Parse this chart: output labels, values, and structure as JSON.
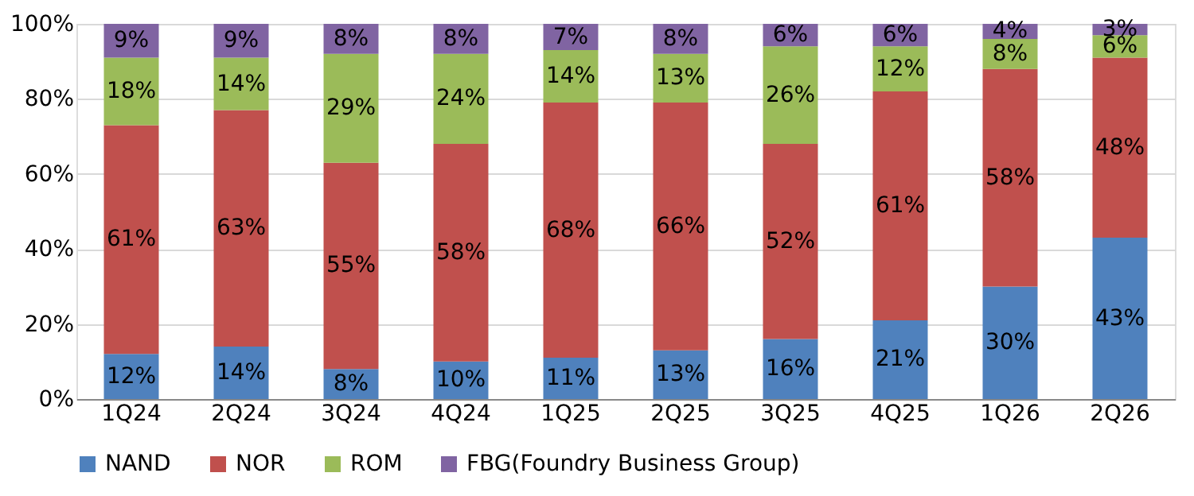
{
  "chart_data": {
    "type": "bar",
    "stacked": true,
    "categories": [
      "1Q24",
      "2Q24",
      "3Q24",
      "4Q24",
      "1Q25",
      "2Q25",
      "3Q25",
      "4Q25",
      "1Q26",
      "2Q26"
    ],
    "series": [
      {
        "name": "NAND",
        "color": "#4f81bd",
        "values": [
          12,
          14,
          8,
          10,
          11,
          13,
          16,
          21,
          30,
          43
        ],
        "value_labels": [
          "12%",
          "14%",
          "8%",
          "10%",
          "11%",
          "13%",
          "16%",
          "21%",
          "30%",
          "43%"
        ]
      },
      {
        "name": "NOR",
        "color": "#c0504d",
        "values": [
          61,
          63,
          55,
          58,
          68,
          66,
          52,
          61,
          58,
          48
        ],
        "value_labels": [
          "61%",
          "63%",
          "55%",
          "58%",
          "68%",
          "66%",
          "52%",
          "61%",
          "58%",
          "48%"
        ]
      },
      {
        "name": "ROM",
        "color": "#9bbb59",
        "values": [
          18,
          14,
          29,
          24,
          14,
          13,
          26,
          12,
          8,
          6
        ],
        "value_labels": [
          "18%",
          "14%",
          "29%",
          "24%",
          "14%",
          "13%",
          "26%",
          "12%",
          "8%",
          "6%"
        ]
      },
      {
        "name": "FBG(Foundry Business Group)",
        "color": "#8064a2",
        "values": [
          9,
          9,
          8,
          8,
          7,
          8,
          6,
          6,
          4,
          3
        ],
        "value_labels": [
          "9%",
          "9%",
          "8%",
          "8%",
          "7%",
          "8%",
          "6%",
          "6%",
          "4%",
          "3%"
        ]
      }
    ],
    "ylim": [
      0,
      100
    ],
    "yticks": [
      {
        "value": 0,
        "label": "0%"
      },
      {
        "value": 20,
        "label": "20%"
      },
      {
        "value": 40,
        "label": "40%"
      },
      {
        "value": 60,
        "label": "60%"
      },
      {
        "value": 80,
        "label": "80%"
      },
      {
        "value": 100,
        "label": "100%"
      }
    ],
    "grid": "y",
    "legend": "bottom"
  }
}
